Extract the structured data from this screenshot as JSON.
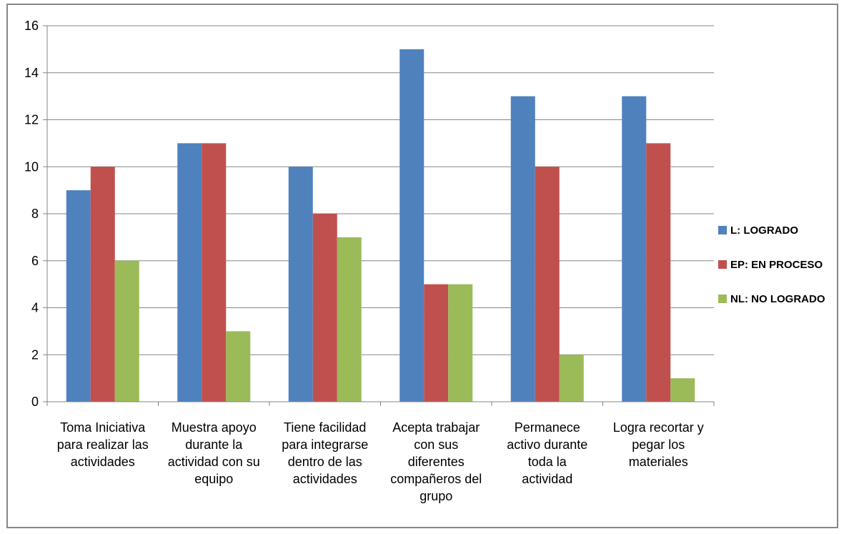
{
  "chart_data": {
    "type": "bar",
    "categories": [
      [
        "Toma Iniciativa",
        "para realizar las",
        "actividades"
      ],
      [
        "Muestra apoyo",
        "durante la",
        "actividad con su",
        "equipo"
      ],
      [
        "Tiene facilidad",
        "para integrarse",
        "dentro de las",
        "actividades"
      ],
      [
        "Acepta trabajar",
        "con sus",
        "diferentes",
        "compañeros del",
        "grupo"
      ],
      [
        "Permanece",
        "activo durante",
        "toda la",
        "actividad"
      ],
      [
        "Logra recortar y",
        "pegar los",
        "materiales"
      ]
    ],
    "series": [
      {
        "name": "L: LOGRADO",
        "color": "#4F81BD",
        "values": [
          9,
          11,
          10,
          15,
          13,
          13
        ]
      },
      {
        "name": "EP: EN PROCESO",
        "color": "#C0504D",
        "values": [
          10,
          11,
          8,
          5,
          10,
          11
        ]
      },
      {
        "name": "NL: NO LOGRADO",
        "color": "#9BBB59",
        "values": [
          6,
          3,
          7,
          5,
          2,
          1
        ]
      }
    ],
    "ylim": [
      0,
      16
    ],
    "yticks": [
      0,
      2,
      4,
      6,
      8,
      10,
      12,
      14,
      16
    ],
    "grid": true,
    "legend_position": "right"
  }
}
